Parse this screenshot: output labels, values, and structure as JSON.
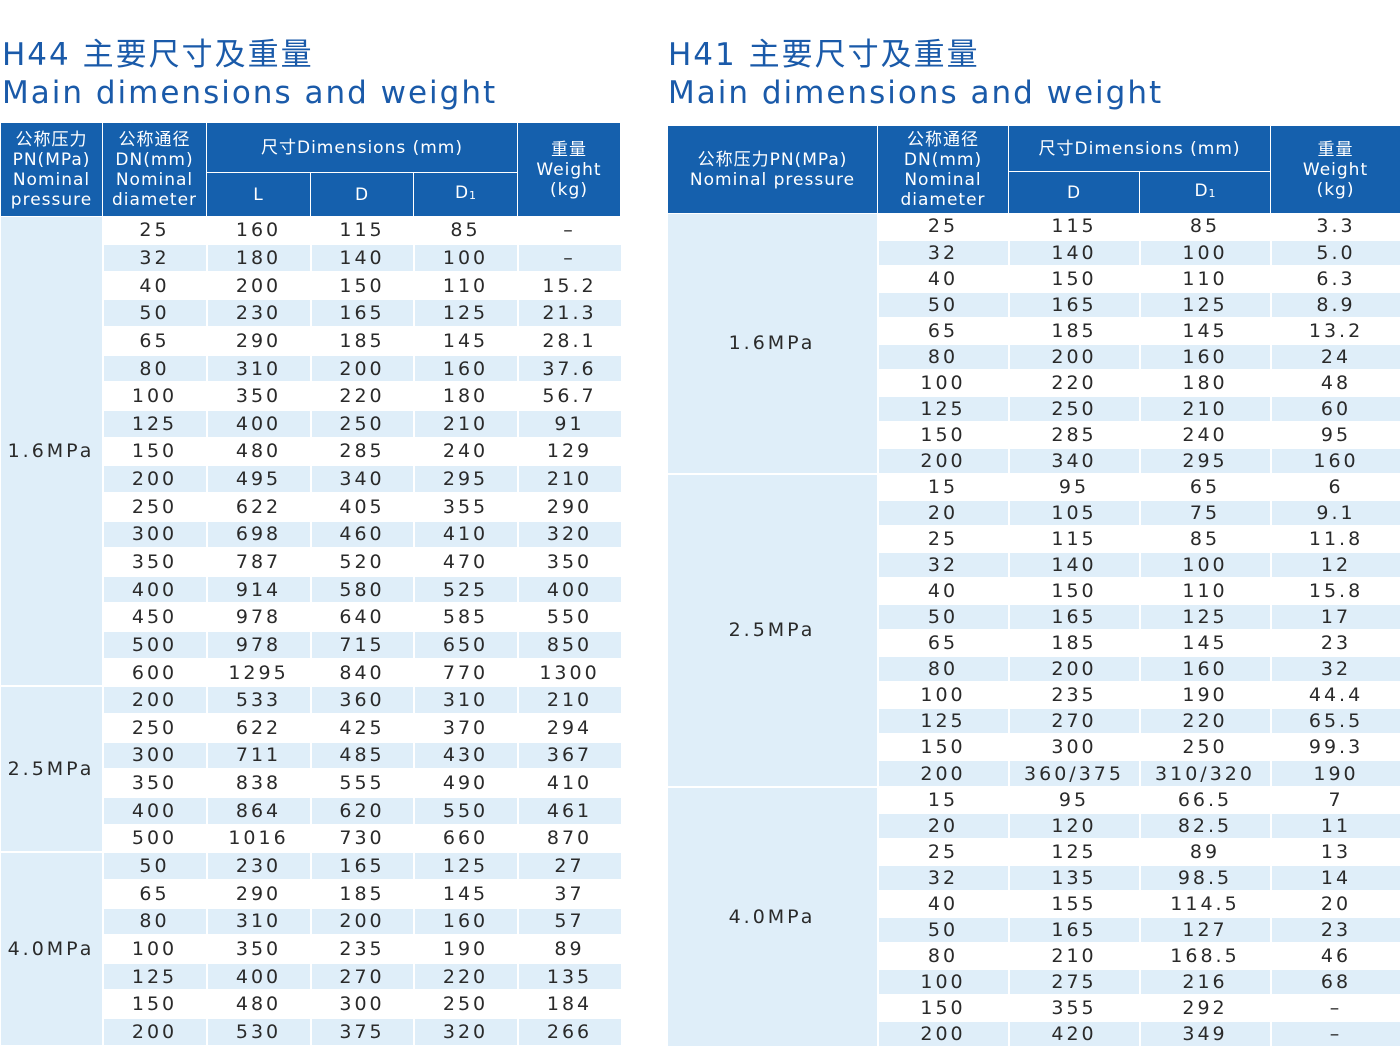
{
  "left": {
    "title_cn": "H44 主要尺寸及重量",
    "title_en": "Main dimensions and weight",
    "headers": {
      "pn": [
        "公称压力",
        "PN(MPa)",
        "Nominal",
        "pressure"
      ],
      "dn": [
        "公称通径",
        "DN(mm)",
        "Nominal",
        "diameter"
      ],
      "dims": "尺寸Dimensions (mm)",
      "L": "L",
      "D": "D",
      "D1": "D",
      "D1_sub": "1",
      "weight": [
        "重量",
        "Weight",
        "(kg)"
      ]
    },
    "groups": [
      {
        "pn": "1.6MPa",
        "rows": [
          [
            "25",
            "160",
            "115",
            "85",
            "–"
          ],
          [
            "32",
            "180",
            "140",
            "100",
            "–"
          ],
          [
            "40",
            "200",
            "150",
            "110",
            "15.2"
          ],
          [
            "50",
            "230",
            "165",
            "125",
            "21.3"
          ],
          [
            "65",
            "290",
            "185",
            "145",
            "28.1"
          ],
          [
            "80",
            "310",
            "200",
            "160",
            "37.6"
          ],
          [
            "100",
            "350",
            "220",
            "180",
            "56.7"
          ],
          [
            "125",
            "400",
            "250",
            "210",
            "91"
          ],
          [
            "150",
            "480",
            "285",
            "240",
            "129"
          ],
          [
            "200",
            "495",
            "340",
            "295",
            "210"
          ],
          [
            "250",
            "622",
            "405",
            "355",
            "290"
          ],
          [
            "300",
            "698",
            "460",
            "410",
            "320"
          ],
          [
            "350",
            "787",
            "520",
            "470",
            "350"
          ],
          [
            "400",
            "914",
            "580",
            "525",
            "400"
          ],
          [
            "450",
            "978",
            "640",
            "585",
            "550"
          ],
          [
            "500",
            "978",
            "715",
            "650",
            "850"
          ],
          [
            "600",
            "1295",
            "840",
            "770",
            "1300"
          ]
        ]
      },
      {
        "pn": "2.5MPa",
        "rows": [
          [
            "200",
            "533",
            "360",
            "310",
            "210"
          ],
          [
            "250",
            "622",
            "425",
            "370",
            "294"
          ],
          [
            "300",
            "711",
            "485",
            "430",
            "367"
          ],
          [
            "350",
            "838",
            "555",
            "490",
            "410"
          ],
          [
            "400",
            "864",
            "620",
            "550",
            "461"
          ],
          [
            "500",
            "1016",
            "730",
            "660",
            "870"
          ]
        ]
      },
      {
        "pn": "4.0MPa",
        "rows": [
          [
            "50",
            "230",
            "165",
            "125",
            "27"
          ],
          [
            "65",
            "290",
            "185",
            "145",
            "37"
          ],
          [
            "80",
            "310",
            "200",
            "160",
            "57"
          ],
          [
            "100",
            "350",
            "235",
            "190",
            "89"
          ],
          [
            "125",
            "400",
            "270",
            "220",
            "135"
          ],
          [
            "150",
            "480",
            "300",
            "250",
            "184"
          ],
          [
            "200",
            "530",
            "375",
            "320",
            "266"
          ]
        ]
      }
    ]
  },
  "right": {
    "title_cn": "H41 主要尺寸及重量",
    "title_en": "Main dimensions and weight",
    "headers": {
      "pn": [
        "公称压力PN(MPa)",
        "Nominal pressure"
      ],
      "dn": [
        "公称通径",
        "DN(mm)",
        "Nominal",
        "diameter"
      ],
      "dims": "尺寸Dimensions (mm)",
      "D": "D",
      "D1": "D",
      "D1_sub": "1",
      "weight": [
        "重量",
        "Weight",
        "(kg)"
      ]
    },
    "groups": [
      {
        "pn": "1.6MPa",
        "rows": [
          [
            "25",
            "115",
            "85",
            "3.3"
          ],
          [
            "32",
            "140",
            "100",
            "5.0"
          ],
          [
            "40",
            "150",
            "110",
            "6.3"
          ],
          [
            "50",
            "165",
            "125",
            "8.9"
          ],
          [
            "65",
            "185",
            "145",
            "13.2"
          ],
          [
            "80",
            "200",
            "160",
            "24"
          ],
          [
            "100",
            "220",
            "180",
            "48"
          ],
          [
            "125",
            "250",
            "210",
            "60"
          ],
          [
            "150",
            "285",
            "240",
            "95"
          ],
          [
            "200",
            "340",
            "295",
            "160"
          ]
        ]
      },
      {
        "pn": "2.5MPa",
        "rows": [
          [
            "15",
            "95",
            "65",
            "6"
          ],
          [
            "20",
            "105",
            "75",
            "9.1"
          ],
          [
            "25",
            "115",
            "85",
            "11.8"
          ],
          [
            "32",
            "140",
            "100",
            "12"
          ],
          [
            "40",
            "150",
            "110",
            "15.8"
          ],
          [
            "50",
            "165",
            "125",
            "17"
          ],
          [
            "65",
            "185",
            "145",
            "23"
          ],
          [
            "80",
            "200",
            "160",
            "32"
          ],
          [
            "100",
            "235",
            "190",
            "44.4"
          ],
          [
            "125",
            "270",
            "220",
            "65.5"
          ],
          [
            "150",
            "300",
            "250",
            "99.3"
          ],
          [
            "200",
            "360/375",
            "310/320",
            "190"
          ]
        ]
      },
      {
        "pn": "4.0MPa",
        "rows": [
          [
            "15",
            "95",
            "66.5",
            "7"
          ],
          [
            "20",
            "120",
            "82.5",
            "11"
          ],
          [
            "25",
            "125",
            "89",
            "13"
          ],
          [
            "32",
            "135",
            "98.5",
            "14"
          ],
          [
            "40",
            "155",
            "114.5",
            "20"
          ],
          [
            "50",
            "165",
            "127",
            "23"
          ],
          [
            "80",
            "210",
            "168.5",
            "46"
          ],
          [
            "100",
            "275",
            "216",
            "68"
          ],
          [
            "150",
            "355",
            "292",
            "–"
          ],
          [
            "200",
            "420",
            "349",
            "–"
          ]
        ]
      }
    ]
  }
}
